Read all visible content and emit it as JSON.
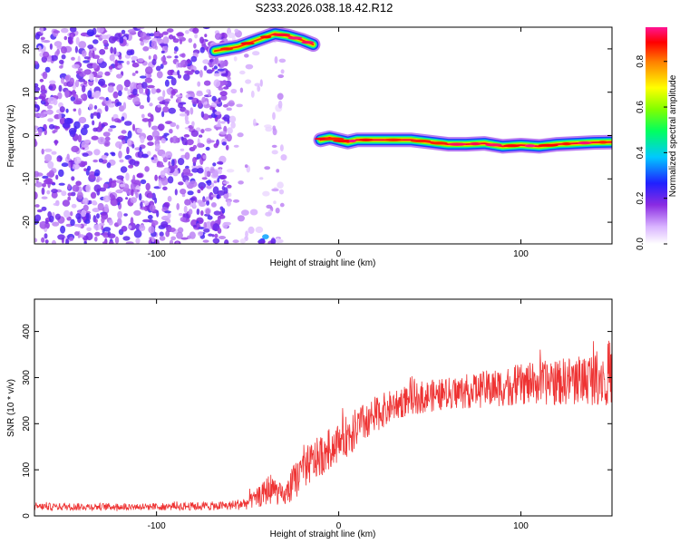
{
  "title": "S233.2026.038.18.42.R12",
  "chart_data": [
    {
      "type": "heatmap",
      "xlabel": "Height of straight line (km)",
      "ylabel": "Frequency (Hz)",
      "xlim": [
        -167,
        150
      ],
      "ylim": [
        -25,
        25
      ],
      "xticks": [
        -100,
        0,
        100
      ],
      "yticks": [
        -20,
        -10,
        0,
        10,
        20
      ],
      "colorbar": {
        "label": "Normalized spectral amplitude",
        "range": [
          0,
          0.95
        ],
        "ticks": [
          0.0,
          0.2,
          0.4,
          0.6,
          0.8
        ],
        "tick_labels": [
          "0.0",
          "0.2",
          "0.4",
          "0.6",
          "0.8"
        ]
      },
      "features": [
        {
          "name": "broadband noise",
          "x_range": [
            -167,
            -60
          ],
          "y_range": [
            -25,
            25
          ],
          "amplitude": 0.2
        },
        {
          "name": "sparse noise",
          "x_range": [
            -60,
            -30
          ],
          "y_range": [
            -25,
            25
          ],
          "amplitude": 0.1
        },
        {
          "name": "faint vertical streak",
          "x_range": [
            -36,
            -33
          ],
          "y_range": [
            -25,
            25
          ],
          "amplitude": 0.1
        },
        {
          "name": "upper edge band",
          "x": [
            -68,
            -55,
            -45,
            -35,
            -28,
            -20,
            -14
          ],
          "y": [
            19.5,
            20.5,
            22,
            23.5,
            23,
            22,
            21
          ],
          "amplitude": 0.9
        },
        {
          "name": "bottom edge blobs",
          "x_range": [
            -48,
            -35
          ],
          "y_range": [
            -25,
            -23
          ],
          "amplitude": 0.3
        },
        {
          "name": "main frequency line",
          "x": [
            -10,
            -5,
            0,
            5,
            10,
            20,
            40,
            50,
            60,
            70,
            80,
            90,
            100,
            110,
            120,
            130,
            140,
            150
          ],
          "y": [
            -1,
            -0.5,
            -1,
            -1.5,
            -1,
            -1,
            -1,
            -1.5,
            -2,
            -2,
            -1.8,
            -2.5,
            -2.2,
            -2.5,
            -2,
            -1.8,
            -1.6,
            -1.5
          ],
          "amplitude": 0.95
        }
      ]
    },
    {
      "type": "line",
      "xlabel": "Height of straight line (km)",
      "ylabel": "SNR (10 * v/v)",
      "xlim": [
        -167,
        150
      ],
      "ylim": [
        0,
        470
      ],
      "xticks": [
        -100,
        0,
        100
      ],
      "yticks": [
        0,
        100,
        200,
        300,
        400
      ],
      "color": "#ee3333",
      "series": [
        {
          "x": [
            -167,
            -140,
            -100,
            -60,
            -50,
            -42,
            -38,
            -35,
            -30,
            -25,
            -20,
            -10,
            0,
            10,
            20,
            30,
            40,
            60,
            80,
            100,
            120,
            140,
            150
          ],
          "y": [
            20,
            20,
            20,
            22,
            28,
            45,
            60,
            55,
            40,
            70,
            100,
            130,
            160,
            190,
            220,
            240,
            255,
            265,
            275,
            285,
            290,
            300,
            310
          ],
          "spread": [
            8,
            8,
            8,
            10,
            14,
            25,
            35,
            30,
            20,
            40,
            45,
            45,
            45,
            45,
            40,
            35,
            35,
            35,
            40,
            45,
            50,
            60,
            70
          ]
        }
      ]
    }
  ]
}
